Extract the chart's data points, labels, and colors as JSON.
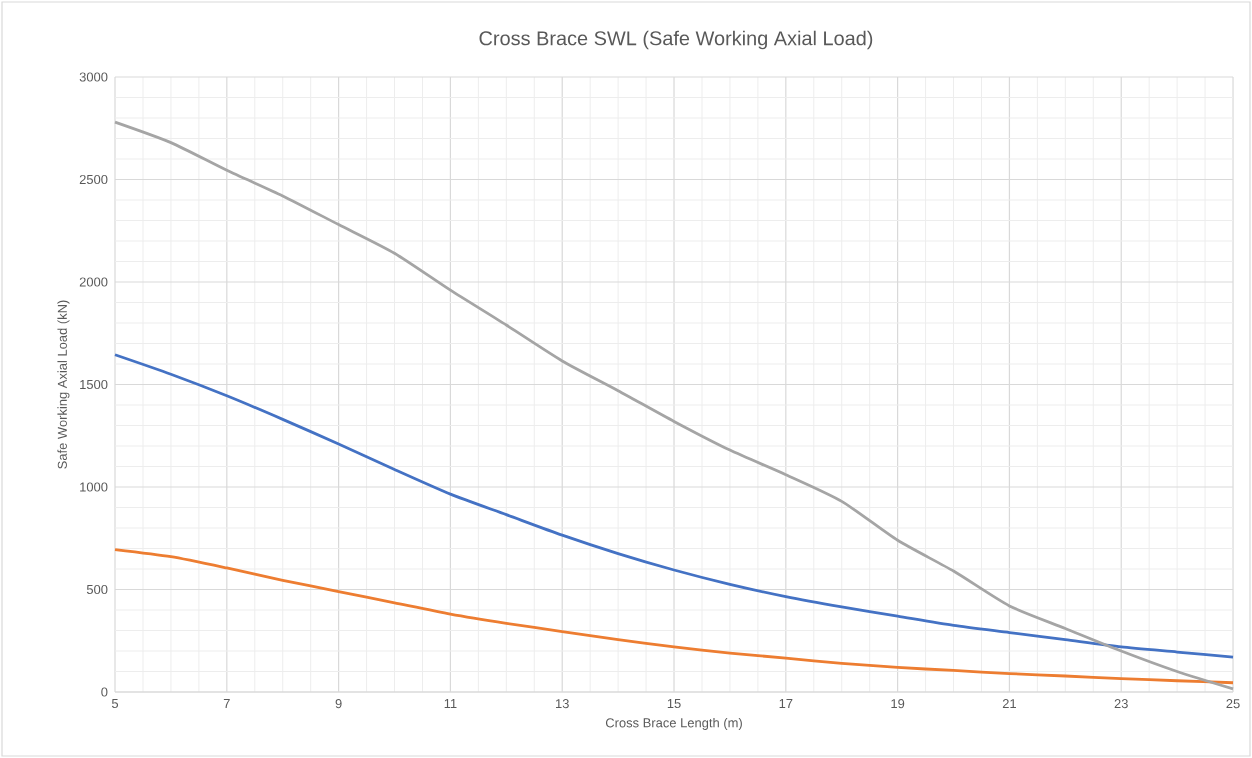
{
  "chart_data": {
    "type": "line",
    "title": "Cross Brace SWL (Safe Working Axial Load)",
    "xlabel": "Cross Brace Length (m)",
    "ylabel": "Safe Working Axial Load (kN)",
    "x": [
      5,
      6,
      7,
      8,
      9,
      10,
      11,
      12,
      13,
      14,
      15,
      16,
      17,
      18,
      19,
      20,
      21,
      22,
      23,
      24,
      25
    ],
    "series": [
      {
        "color": "#4472c4",
        "values": [
          1645,
          1550,
          1445,
          1330,
          1210,
          1085,
          965,
          865,
          765,
          675,
          595,
          525,
          465,
          415,
          370,
          325,
          290,
          255,
          220,
          195,
          170
        ]
      },
      {
        "color": "#ed7d31",
        "values": [
          695,
          660,
          605,
          545,
          490,
          435,
          380,
          335,
          295,
          255,
          220,
          190,
          165,
          140,
          120,
          105,
          90,
          78,
          65,
          55,
          45
        ]
      },
      {
        "color": "#a5a5a5",
        "values": [
          2780,
          2680,
          2545,
          2420,
          2280,
          2140,
          1960,
          1790,
          1615,
          1470,
          1320,
          1180,
          1060,
          930,
          740,
          590,
          420,
          310,
          200,
          100,
          15
        ]
      }
    ],
    "xlim": [
      5,
      25
    ],
    "ylim": [
      0,
      3000
    ],
    "xticks": [
      5,
      7,
      9,
      11,
      13,
      15,
      17,
      19,
      21,
      23,
      25
    ],
    "yticks": [
      0,
      500,
      1000,
      1500,
      2000,
      2500,
      3000
    ],
    "grid": true,
    "marker": "none",
    "line_style": "solid"
  }
}
